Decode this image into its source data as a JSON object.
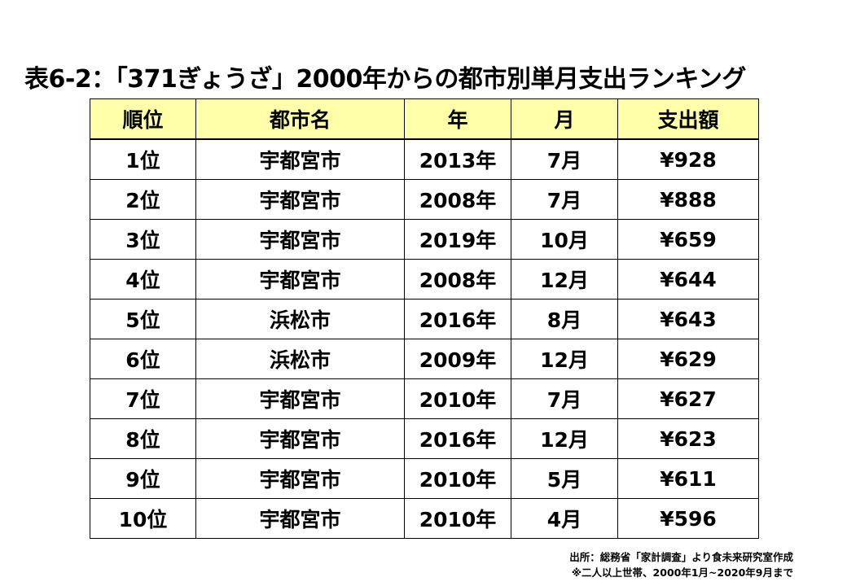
{
  "title": "表6-2：「371ぎょうざ」2000年からの都市別単月支出ランキング",
  "table": {
    "headers": [
      "順位",
      "都市名",
      "年",
      "月",
      "支出額"
    ],
    "rows": [
      [
        "1位",
        "宇都宮市",
        "2013年",
        "7月",
        "¥928"
      ],
      [
        "2位",
        "宇都宮市",
        "2008年",
        "7月",
        "¥888"
      ],
      [
        "3位",
        "宇都宮市",
        "2019年",
        "10月",
        "¥659"
      ],
      [
        "4位",
        "宇都宮市",
        "2008年",
        "12月",
        "¥644"
      ],
      [
        "5位",
        "浜松市",
        "2016年",
        "8月",
        "¥643"
      ],
      [
        "6位",
        "浜松市",
        "2009年",
        "12月",
        "¥629"
      ],
      [
        "7位",
        "宇都宮市",
        "2010年",
        "7月",
        "¥627"
      ],
      [
        "8位",
        "宇都宮市",
        "2016年",
        "12月",
        "¥623"
      ],
      [
        "9位",
        "宇都宮市",
        "2010年",
        "5月",
        "¥611"
      ],
      [
        "10位",
        "宇都宮市",
        "2010年",
        "4月",
        "¥596"
      ]
    ],
    "header_bg": "#ffffaa"
  },
  "notes": {
    "source": "出所：総務省「家計調査」より食未来研究室作成",
    "scope": "※二人以上世帯、2000年1月~2020年9月まで"
  }
}
